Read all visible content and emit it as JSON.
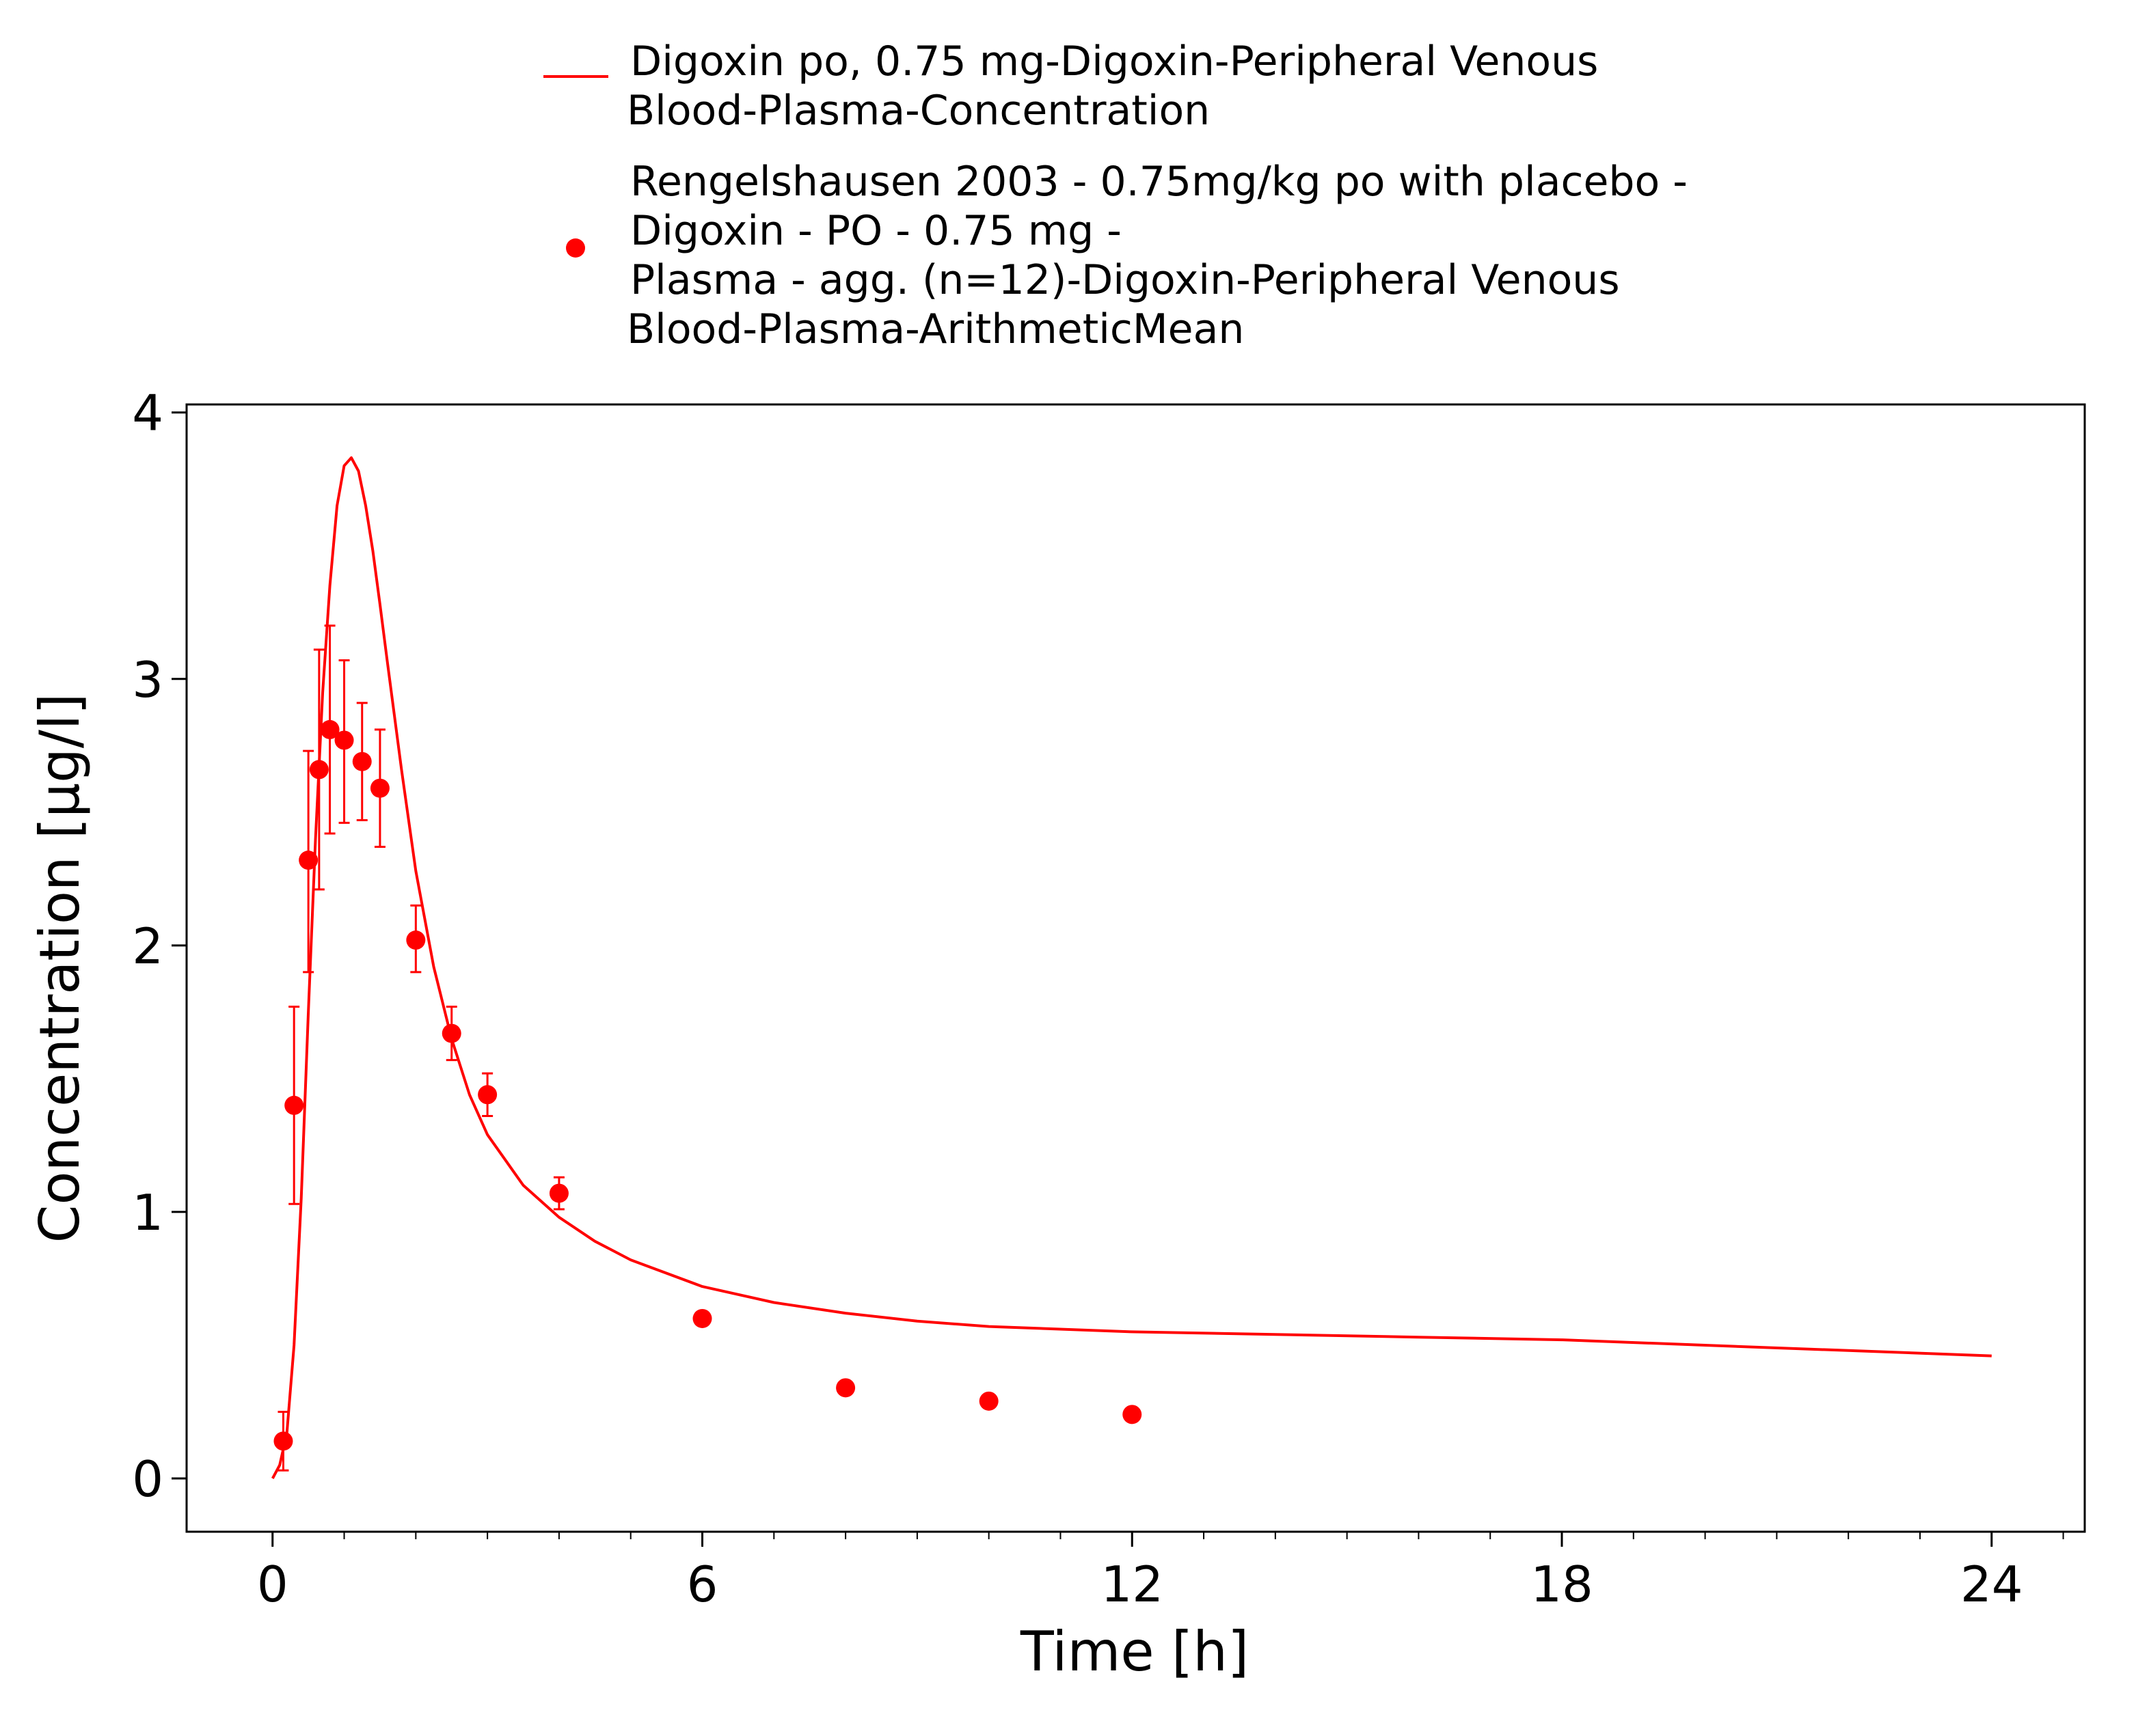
{
  "chart_data": {
    "type": "line",
    "xlabel": "Time [h]",
    "ylabel": "Concentration [µg/l]",
    "xlim": [
      -1.2,
      25.3
    ],
    "ylim": [
      -0.2,
      4.03
    ],
    "xticks": [
      0,
      6,
      12,
      18,
      24
    ],
    "xtick_labels": [
      "0",
      "6",
      "12",
      "18",
      "24"
    ],
    "yticks": [
      0,
      1,
      2,
      3,
      4
    ],
    "ytick_labels": [
      "0",
      "1",
      "2",
      "3",
      "4"
    ],
    "x_minor_step": 1,
    "grid": false,
    "legend_position": "top",
    "series": [
      {
        "name_lines": [
          "Digoxin po, 0.75 mg-Digoxin-Peripheral Venous",
          "Blood-Plasma-Concentration"
        ],
        "style": "line",
        "color": "#ff0000",
        "x": [
          0,
          0.1,
          0.2,
          0.3,
          0.4,
          0.5,
          0.6,
          0.7,
          0.8,
          0.9,
          1.0,
          1.1,
          1.2,
          1.3,
          1.4,
          1.5,
          1.6,
          1.8,
          2.0,
          2.25,
          2.5,
          2.75,
          3.0,
          3.5,
          4.0,
          4.5,
          5.0,
          6.0,
          7.0,
          8.0,
          9.0,
          10.0,
          12.0,
          14.0,
          16.0,
          18.0,
          20.0,
          22.0,
          24.0
        ],
        "y": [
          0.0,
          0.05,
          0.17,
          0.5,
          1.05,
          1.75,
          2.4,
          2.95,
          3.35,
          3.65,
          3.8,
          3.83,
          3.78,
          3.65,
          3.48,
          3.28,
          3.07,
          2.66,
          2.28,
          1.92,
          1.65,
          1.44,
          1.29,
          1.1,
          0.98,
          0.89,
          0.82,
          0.72,
          0.66,
          0.62,
          0.59,
          0.57,
          0.55,
          0.54,
          0.53,
          0.52,
          0.5,
          0.48,
          0.46
        ]
      },
      {
        "name_lines": [
          "Rengelshausen 2003 - 0.75mg/kg po with placebo -",
          "Digoxin - PO - 0.75 mg -",
          "Plasma - agg. (n=12)-Digoxin-Peripheral Venous",
          "Blood-Plasma-ArithmeticMean"
        ],
        "style": "scatter",
        "color": "#ff0000",
        "x": [
          0.15,
          0.3,
          0.5,
          0.65,
          0.8,
          1.0,
          1.25,
          1.5,
          2.0,
          2.5,
          3.0,
          4.0,
          6.0,
          8.0,
          10.0,
          12.0
        ],
        "y": [
          0.14,
          1.4,
          2.32,
          2.66,
          2.81,
          2.77,
          2.69,
          2.59,
          2.02,
          1.67,
          1.44,
          1.07,
          0.6,
          0.34,
          0.29,
          0.24
        ],
        "err_low": [
          0.03,
          1.03,
          1.9,
          2.21,
          2.42,
          2.46,
          2.47,
          2.37,
          1.9,
          1.57,
          1.36,
          1.01,
          null,
          null,
          null,
          null
        ],
        "err_high": [
          0.25,
          1.77,
          2.73,
          3.11,
          3.2,
          3.07,
          2.91,
          2.81,
          2.15,
          1.77,
          1.52,
          1.13,
          null,
          null,
          null,
          null
        ]
      }
    ]
  }
}
